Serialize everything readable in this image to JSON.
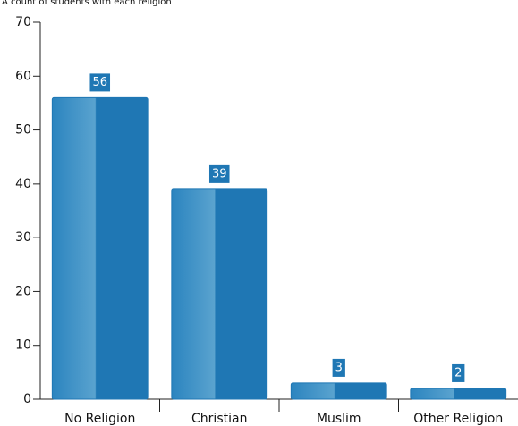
{
  "chart_data": {
    "type": "bar",
    "subtitle": "A count of students with each religion",
    "categories": [
      "No Religion",
      "Christian",
      "Muslim",
      "Other Religion"
    ],
    "values": [
      56,
      39,
      3,
      2
    ],
    "color": "#1f77b4",
    "ylim": [
      0,
      70
    ],
    "yticks": [
      0,
      10,
      20,
      30,
      40,
      50,
      60,
      70
    ]
  }
}
